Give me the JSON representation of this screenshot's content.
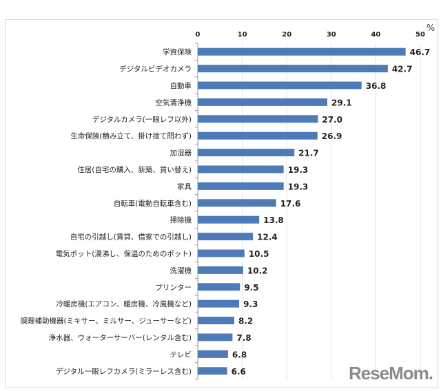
{
  "chart_data": {
    "type": "bar",
    "orientation": "horizontal",
    "unit_label": "%",
    "xlim": [
      0,
      50
    ],
    "xticks": [
      0,
      10,
      20,
      30,
      40,
      50
    ],
    "grid": true,
    "bar_color": "#4f7ab8",
    "categories": [
      "学資保険",
      "デジタルビデオカメラ",
      "自動車",
      "空気清浄機",
      "デジタルカメラ(一眼レフ以外)",
      "生命保険(積み立て、掛け捨て問わず)",
      "加湿器",
      "住居(自宅の購入、新築、買い替え)",
      "家具",
      "自転車(電動自転車含む)",
      "掃除機",
      "自宅の引越し(賃貸、借家での引越し)",
      "電気ポット(湯沸し、保温のためのポット)",
      "洗濯機",
      "プリンター",
      "冷暖房機(エアコン、暖房機、冷風機など)",
      "調理補助機器(ミキサー、ミルサー、ジューサーなど)",
      "浄水器、ウォーターサーバー(レンタル含む)",
      "テレビ",
      "デジタル一眼レフカメラ(ミラーレス含む)"
    ],
    "values": [
      46.7,
      42.7,
      36.8,
      29.1,
      27.0,
      26.9,
      21.7,
      19.3,
      19.3,
      17.6,
      13.8,
      12.4,
      10.5,
      10.2,
      9.5,
      9.3,
      8.2,
      7.8,
      6.8,
      6.6
    ]
  },
  "watermark": "ReseMom."
}
